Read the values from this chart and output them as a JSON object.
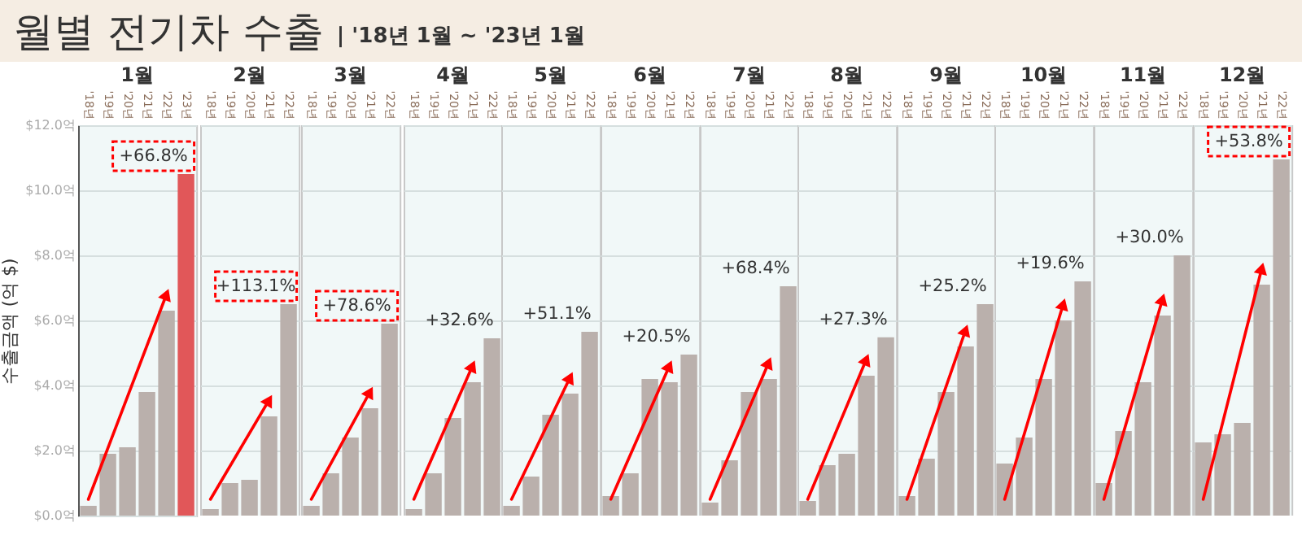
{
  "chart_data": [
    {
      "type": "other",
      "title": "월별 전기차 수출",
      "subtitle": "| '18년 1월 ~ '23년 1월"
    },
    {
      "type": "bar",
      "title": "1월",
      "categories": [
        "'18년",
        "'19년",
        "'20년",
        "'21년",
        "'22년",
        "'23년"
      ],
      "values": [
        0.3,
        1.9,
        2.1,
        3.8,
        6.3,
        10.5
      ],
      "colors": [
        "#bab0ac",
        "#bab0ac",
        "#bab0ac",
        "#bab0ac",
        "#bab0ac",
        "#e15759"
      ],
      "ylabel": "수출금액 (억 $)",
      "ylim": [
        0,
        12
      ],
      "yticks": [
        {
          "value": 0,
          "label": "$0.0억"
        },
        {
          "value": 2,
          "label": "$2.0억"
        },
        {
          "value": 4,
          "label": "$4.0억"
        },
        {
          "value": 6,
          "label": "$6.0억"
        },
        {
          "value": 8,
          "label": "$8.0억"
        },
        {
          "value": 10,
          "label": "$10.0억"
        },
        {
          "value": 12,
          "label": "$12.0억"
        }
      ],
      "grid": "y",
      "annotations": [
        {
          "text": "+66.8%",
          "x": "'23년",
          "y": 10.5
        }
      ]
    },
    {
      "type": "bar",
      "title": "2월",
      "categories": [
        "'18년",
        "'19년",
        "'20년",
        "'21년",
        "'22년"
      ],
      "values": [
        0.2,
        1.0,
        1.1,
        3.05,
        6.5
      ],
      "color": "#bab0ac",
      "ylim": [
        0,
        12
      ],
      "yticks": [
        0,
        2,
        4,
        6,
        8,
        10,
        12
      ],
      "grid": "y",
      "tick_labels": "x",
      "annotations": [
        {
          "text": "+113.1%",
          "x": "'22년",
          "y": 6.5
        }
      ]
    },
    {
      "type": "bar",
      "title": "3월",
      "categories": [
        "'18년",
        "'19년",
        "'20년",
        "'21년",
        "'22년"
      ],
      "values": [
        0.3,
        1.3,
        2.4,
        3.3,
        5.9
      ],
      "color": "#bab0ac",
      "ylim": [
        0,
        12
      ],
      "yticks": [
        0,
        2,
        4,
        6,
        8,
        10,
        12
      ],
      "grid": "y",
      "tick_labels": "x",
      "annotations": [
        {
          "text": "+78.6%",
          "x": "'22년",
          "y": 5.9
        }
      ]
    },
    {
      "type": "bar",
      "title": "4월",
      "categories": [
        "'18년",
        "'19년",
        "'20년",
        "'21년",
        "'22년"
      ],
      "values": [
        0.2,
        1.3,
        3.0,
        4.1,
        5.45
      ],
      "color": "#bab0ac",
      "ylim": [
        0,
        12
      ],
      "yticks": [
        0,
        2,
        4,
        6,
        8,
        10,
        12
      ],
      "grid": "y",
      "tick_labels": "x",
      "annotations": [
        {
          "text": "+32.6%",
          "x": "'22년",
          "y": 5.45
        }
      ]
    },
    {
      "type": "bar",
      "title": "5월",
      "categories": [
        "'18년",
        "'19년",
        "'20년",
        "'21년",
        "'22년"
      ],
      "values": [
        0.3,
        1.2,
        3.1,
        3.75,
        5.65
      ],
      "color": "#bab0ac",
      "ylim": [
        0,
        12
      ],
      "yticks": [
        0,
        2,
        4,
        6,
        8,
        10,
        12
      ],
      "grid": "y",
      "tick_labels": "x",
      "annotations": [
        {
          "text": "+51.1%",
          "x": "'22년",
          "y": 5.65
        }
      ]
    },
    {
      "type": "bar",
      "title": "6월",
      "categories": [
        "'18년",
        "'19년",
        "'20년",
        "'21년",
        "'22년"
      ],
      "values": [
        0.6,
        1.3,
        4.2,
        4.1,
        4.95
      ],
      "color": "#bab0ac",
      "ylim": [
        0,
        12
      ],
      "yticks": [
        0,
        2,
        4,
        6,
        8,
        10,
        12
      ],
      "grid": "y",
      "tick_labels": "x",
      "annotations": [
        {
          "text": "+20.5%",
          "x": "'22년",
          "y": 4.95
        }
      ]
    },
    {
      "type": "bar",
      "title": "7월",
      "categories": [
        "'18년",
        "'19년",
        "'20년",
        "'21년",
        "'22년"
      ],
      "values": [
        0.4,
        1.7,
        3.8,
        4.2,
        7.05
      ],
      "color": "#bab0ac",
      "ylim": [
        0,
        12
      ],
      "yticks": [
        0,
        2,
        4,
        6,
        8,
        10,
        12
      ],
      "grid": "y",
      "tick_labels": "x",
      "annotations": [
        {
          "text": "+68.4%",
          "x": "'22년",
          "y": 7.05
        }
      ]
    },
    {
      "type": "bar",
      "title": "8월",
      "categories": [
        "'18년",
        "'19년",
        "'20년",
        "'21년",
        "'22년"
      ],
      "values": [
        0.45,
        1.55,
        1.9,
        4.3,
        5.48
      ],
      "color": "#bab0ac",
      "ylim": [
        0,
        12
      ],
      "yticks": [
        0,
        2,
        4,
        6,
        8,
        10,
        12
      ],
      "grid": "y",
      "tick_labels": "x",
      "annotations": [
        {
          "text": "+27.3%",
          "x": "'22년",
          "y": 5.48
        }
      ]
    },
    {
      "type": "bar",
      "title": "9월",
      "categories": [
        "'18년",
        "'19년",
        "'20년",
        "'21년",
        "'22년"
      ],
      "values": [
        0.6,
        1.75,
        3.8,
        5.2,
        6.5
      ],
      "color": "#bab0ac",
      "ylim": [
        0,
        12
      ],
      "yticks": [
        0,
        2,
        4,
        6,
        8,
        10,
        12
      ],
      "grid": "y",
      "tick_labels": "x",
      "annotations": [
        {
          "text": "+25.2%",
          "x": "'22년",
          "y": 6.5
        }
      ]
    },
    {
      "type": "bar",
      "title": "10월",
      "categories": [
        "'18년",
        "'19년",
        "'20년",
        "'21년",
        "'22년"
      ],
      "values": [
        1.6,
        2.4,
        4.2,
        6.0,
        7.2
      ],
      "color": "#bab0ac",
      "ylim": [
        0,
        12
      ],
      "yticks": [
        0,
        2,
        4,
        6,
        8,
        10,
        12
      ],
      "grid": "y",
      "tick_labels": "x",
      "annotations": [
        {
          "text": "+19.6%",
          "x": "'22년",
          "y": 7.2
        }
      ]
    },
    {
      "type": "bar",
      "title": "11월",
      "categories": [
        "'18년",
        "'19년",
        "'20년",
        "'21년",
        "'22년"
      ],
      "values": [
        1.0,
        2.6,
        4.1,
        6.15,
        8.0
      ],
      "color": "#bab0ac",
      "ylim": [
        0,
        12
      ],
      "yticks": [
        0,
        2,
        4,
        6,
        8,
        10,
        12
      ],
      "grid": "y",
      "tick_labels": "x",
      "annotations": [
        {
          "text": "+30.0%",
          "x": "'22년",
          "y": 8.0
        }
      ]
    },
    {
      "type": "bar",
      "title": "12월",
      "categories": [
        "'18년",
        "'19년",
        "'20년",
        "'21년",
        "'22년"
      ],
      "values": [
        2.25,
        2.5,
        2.85,
        7.1,
        10.95
      ],
      "color": "#bab0ac",
      "ylim": [
        0,
        12
      ],
      "yticks": [
        0,
        2,
        4,
        6,
        8,
        10,
        12
      ],
      "grid": "y",
      "tick_labels": "x",
      "annotations": [
        {
          "text": "+53.8%",
          "x": "'22년",
          "y": 10.95
        }
      ]
    }
  ]
}
